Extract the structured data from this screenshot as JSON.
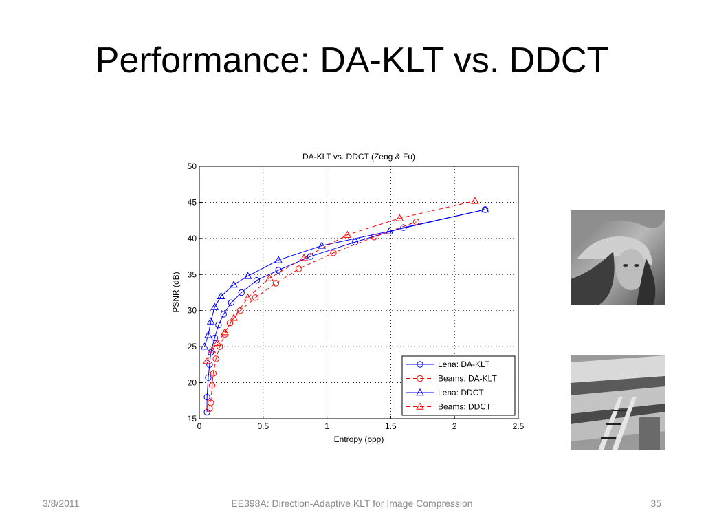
{
  "slide": {
    "title": "Performance: DA-KLT vs. DDCT",
    "footer_date": "3/8/2011",
    "footer_center": "EE398A: Direction-Adaptive KLT for Image Compression",
    "footer_page": "35"
  },
  "images": [
    {
      "name": "lena-thumbnail",
      "caption": ""
    },
    {
      "name": "beams-thumbnail",
      "caption": ""
    }
  ],
  "colors": {
    "blue": "#0000ff",
    "red": "#ff0000",
    "grid": "#000000"
  },
  "chart_data": {
    "type": "line",
    "title": "DA-KLT vs. DDCT (Zeng & Fu)",
    "xlabel": "Entropy (bpp)",
    "ylabel": "PSNR (dB)",
    "xlim": [
      0,
      2.5
    ],
    "ylim": [
      15,
      50
    ],
    "xticks": [
      0,
      0.5,
      1,
      1.5,
      2,
      2.5
    ],
    "xtick_labels": [
      "0",
      "0.5",
      "1",
      "1.5",
      "2",
      "2.5"
    ],
    "yticks": [
      15,
      20,
      25,
      30,
      35,
      40,
      45,
      50
    ],
    "ytick_labels": [
      "15",
      "20",
      "25",
      "30",
      "35",
      "40",
      "45",
      "50"
    ],
    "grid": true,
    "legend_position": "bottom-right",
    "series": [
      {
        "name": "Lena: DA-KLT",
        "color": "#0000ff",
        "dash": "solid",
        "marker": "circle",
        "x": [
          0.06,
          0.06,
          0.07,
          0.08,
          0.09,
          0.12,
          0.15,
          0.19,
          0.25,
          0.33,
          0.45,
          0.62,
          0.87,
          1.22,
          1.6,
          2.24
        ],
        "y": [
          15.9,
          18.0,
          20.7,
          22.5,
          24.2,
          26.2,
          28.0,
          29.5,
          31.1,
          32.5,
          34.2,
          35.6,
          37.5,
          39.5,
          41.5,
          44.0
        ]
      },
      {
        "name": "Beams: DA-KLT",
        "color": "#ff0000",
        "dash": "dashed",
        "marker": "circle",
        "x": [
          0.08,
          0.09,
          0.1,
          0.11,
          0.13,
          0.16,
          0.2,
          0.24,
          0.32,
          0.44,
          0.6,
          0.78,
          1.05,
          1.37,
          1.7
        ],
        "y": [
          16.4,
          17.2,
          19.6,
          21.3,
          23.3,
          25.0,
          26.7,
          28.3,
          30.0,
          31.8,
          33.8,
          35.8,
          38.0,
          40.2,
          42.3
        ]
      },
      {
        "name": "Lena: DDCT",
        "color": "#0000ff",
        "dash": "solid",
        "marker": "triangle",
        "x": [
          0.04,
          0.07,
          0.09,
          0.12,
          0.17,
          0.27,
          0.38,
          0.62,
          0.96,
          1.49,
          2.24
        ],
        "y": [
          25.0,
          26.6,
          28.5,
          30.5,
          32.0,
          33.6,
          34.8,
          37.0,
          39.0,
          41.0,
          44.0
        ]
      },
      {
        "name": "Beams: DDCT",
        "color": "#ff0000",
        "dash": "dashed",
        "marker": "triangle",
        "x": [
          0.06,
          0.1,
          0.14,
          0.2,
          0.27,
          0.38,
          0.55,
          0.82,
          1.16,
          1.57,
          2.16
        ],
        "y": [
          23.0,
          24.5,
          25.5,
          27.0,
          29.0,
          31.8,
          34.5,
          37.3,
          40.5,
          42.8,
          45.2
        ]
      }
    ]
  }
}
